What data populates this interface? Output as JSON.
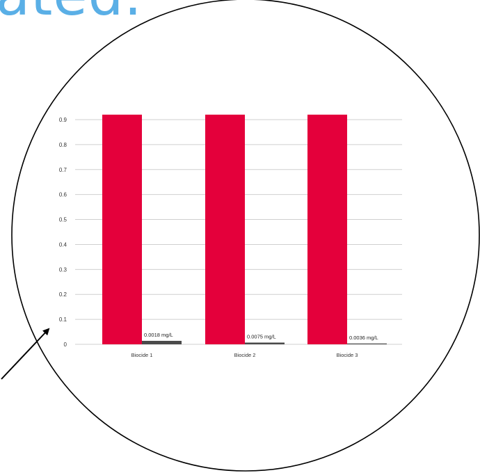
{
  "heading_fragment": "ated.",
  "colors": {
    "heading": "#5aafe6",
    "bar_primary": "#e4003b",
    "bar_secondary": "#4a4a4a",
    "grid": "#cfcfcf",
    "outline": "#000000"
  },
  "chart_data": {
    "type": "bar",
    "categories": [
      "Biocide 1",
      "Biocide 2",
      "Biocide 3"
    ],
    "series": [
      {
        "values": [
          0.92,
          0.92,
          0.92
        ]
      },
      {
        "values": [
          0.0018,
          0.0075,
          0.0036
        ]
      }
    ],
    "data_labels": [
      "0.0018 mg/L",
      "0.0075 mg/L",
      "0.0036 mg/L"
    ],
    "yticks": [
      "0",
      "0.1",
      "0.2",
      "0.3",
      "0.4",
      "0.5",
      "0.6",
      "0.7",
      "0.8",
      "0.9"
    ],
    "ylim": [
      0,
      0.9
    ],
    "grid": true,
    "title": "",
    "xlabel": "",
    "ylabel": ""
  }
}
